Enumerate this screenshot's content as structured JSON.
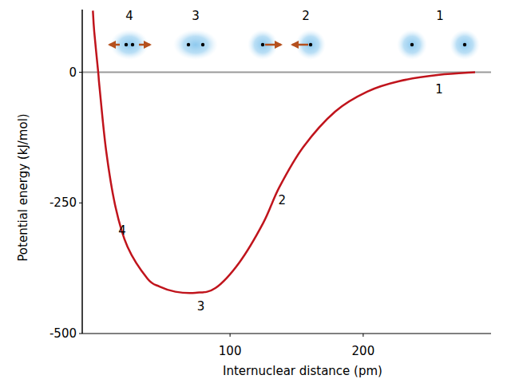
{
  "chart_data": {
    "type": "line",
    "x_label": "Internuclear distance (pm)",
    "y_label": "Potential energy (kJ/mol)",
    "x": [
      -3,
      -2,
      1,
      2,
      7,
      14,
      23,
      38,
      47,
      59,
      74,
      89,
      107,
      125,
      137,
      155,
      179,
      203,
      227,
      257,
      284
    ],
    "values": [
      118,
      78,
      0,
      -29,
      -151,
      -258,
      -334,
      -395,
      -410,
      -420,
      -422,
      -413,
      -364,
      -288,
      -220,
      -143,
      -75,
      -37,
      -17,
      -5,
      0
    ],
    "color": "#c0141c",
    "xlim": [
      -11,
      296
    ],
    "ylim": [
      -500,
      120
    ],
    "xticks": [
      100,
      200
    ],
    "yticks": [
      0,
      -250,
      -500
    ],
    "annotations": [
      {
        "text": "1",
        "x": 257,
        "y": -32
      },
      {
        "text": "2",
        "x": 139,
        "y": -245
      },
      {
        "text": "3",
        "x": 78,
        "y": -448
      },
      {
        "text": "4",
        "x": 19,
        "y": -303
      }
    ],
    "stages": [
      "4",
      "3",
      "2",
      "1"
    ]
  }
}
